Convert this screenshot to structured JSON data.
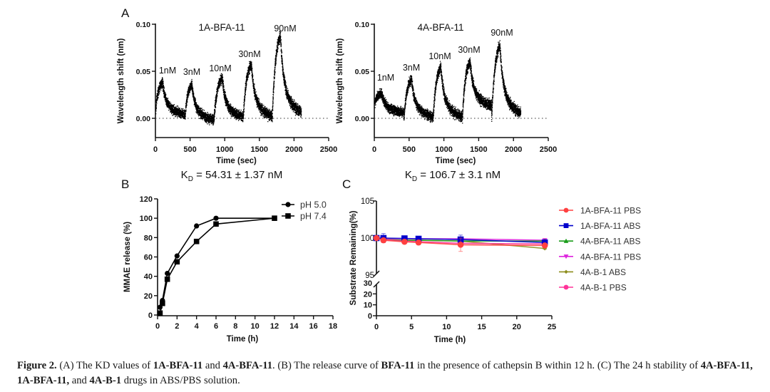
{
  "figure": {
    "panel_labels": [
      "A",
      "B",
      "C"
    ],
    "caption": {
      "parts": [
        {
          "t": "Figure 2.",
          "b": true
        },
        {
          "t": " (A) The KD values of ",
          "b": false
        },
        {
          "t": "1A-BFA-11",
          "b": true
        },
        {
          "t": " and ",
          "b": false
        },
        {
          "t": "4A-BFA-11",
          "b": true
        },
        {
          "t": ". (B) The release curve of ",
          "b": false
        },
        {
          "t": "BFA-11",
          "b": true
        },
        {
          "t": " in the presence of cathepsin B within 12 h. (C) The 24 h stability of ",
          "b": false
        },
        {
          "t": "4A-BFA-11, 1A-BFA-11,",
          "b": true
        },
        {
          "t": " and ",
          "b": false
        },
        {
          "t": "4A-B-1",
          "b": true
        },
        {
          "t": " drugs in ABS/PBS solution.",
          "b": false
        }
      ]
    }
  },
  "chart_data": [
    {
      "id": "A1",
      "type": "scatter",
      "title": "1A-BFA-11",
      "xlabel": "Time (sec)",
      "ylabel": "Wavelength shift (nm)",
      "xlim": [
        0,
        2500
      ],
      "ylim": [
        -0.02,
        0.1
      ],
      "xticks": [
        0,
        500,
        1000,
        1500,
        2000,
        2500
      ],
      "yticks": [
        "0.00",
        "0.05",
        "0.10"
      ],
      "ytick_values": [
        0,
        0.05,
        0.1
      ],
      "baseline": 0,
      "kd_label": "K_D = 54.31 ± 1.37 nM",
      "kd_main": "K",
      "kd_sub": "D",
      "kd_rest": " = 54.31 ± 1.37 nM",
      "injections": [
        {
          "label": "1nM",
          "start": 0,
          "peak_time": 100,
          "peak": 0.038,
          "start_value": 0.012,
          "end": 420,
          "end_value": 0.003
        },
        {
          "label": "3nM",
          "start": 420,
          "peak_time": 520,
          "peak": 0.036,
          "start_value": 0.0,
          "end": 840,
          "end_value": -0.003
        },
        {
          "label": "10nM",
          "start": 840,
          "peak_time": 960,
          "peak": 0.043,
          "start_value": 0.0,
          "end": 1260,
          "end_value": 0.0
        },
        {
          "label": "30nM",
          "start": 1260,
          "peak_time": 1380,
          "peak": 0.058,
          "start_value": 0.0,
          "end": 1680,
          "end_value": 0.0
        },
        {
          "label": "90nM",
          "start": 1680,
          "peak_time": 1800,
          "peak": 0.088,
          "start_value": 0.0,
          "end": 2100,
          "end_value": 0.003
        }
      ]
    },
    {
      "id": "A2",
      "type": "scatter",
      "title": "4A-BFA-11",
      "xlabel": "Time (sec)",
      "ylabel": "Wavelength shift (nm)",
      "xlim": [
        0,
        2500
      ],
      "ylim": [
        -0.02,
        0.1
      ],
      "xticks": [
        0,
        500,
        1000,
        1500,
        2000,
        2500
      ],
      "yticks": [
        "0.00",
        "0.05",
        "0.10"
      ],
      "ytick_values": [
        0,
        0.05,
        0.1
      ],
      "baseline": 0,
      "kd_label": "K_D = 106.7 ± 3.1 nM",
      "kd_main": "K",
      "kd_sub": "D",
      "kd_rest": " = 106.7 ± 3.1 nM",
      "injections": [
        {
          "label": "1nM",
          "start": 0,
          "peak_time": 100,
          "peak": 0.027,
          "start_value": 0.016,
          "end": 420,
          "end_value": 0.006
        },
        {
          "label": "3nM",
          "start": 420,
          "peak_time": 530,
          "peak": 0.042,
          "start_value": 0.0,
          "end": 840,
          "end_value": 0.0
        },
        {
          "label": "10nM",
          "start": 840,
          "peak_time": 950,
          "peak": 0.055,
          "start_value": 0.0,
          "end": 1260,
          "end_value": 0.0
        },
        {
          "label": "30nM",
          "start": 1260,
          "peak_time": 1370,
          "peak": 0.061,
          "start_value": 0.0,
          "end": 1680,
          "end_value": 0.012
        },
        {
          "label": "90nM",
          "start": 1680,
          "peak_time": 1800,
          "peak": 0.078,
          "start_value": 0.0,
          "end": 2100,
          "end_value": 0.003
        }
      ]
    },
    {
      "id": "B",
      "type": "line",
      "title": "",
      "xlabel": "Time (h)",
      "ylabel": "MMAE release (%)",
      "xlim": [
        0,
        18
      ],
      "ylim": [
        0,
        120
      ],
      "xticks": [
        0,
        2,
        4,
        6,
        8,
        10,
        12,
        14,
        16,
        18
      ],
      "yticks": [
        0,
        20,
        40,
        60,
        80,
        100,
        120
      ],
      "legend_position": "top-right",
      "series": [
        {
          "name": "pH 5.0",
          "marker": "circle",
          "color": "#000000",
          "x": [
            0.25,
            0.5,
            1,
            2,
            4,
            6,
            12
          ],
          "y": [
            8,
            15,
            43,
            61,
            92,
            100,
            100
          ]
        },
        {
          "name": "pH 7.4",
          "marker": "square",
          "color": "#000000",
          "x": [
            0.25,
            0.5,
            1,
            2,
            4,
            6,
            12
          ],
          "y": [
            2,
            12,
            37,
            55,
            76,
            94,
            100
          ]
        }
      ]
    },
    {
      "id": "C",
      "type": "line",
      "title": "",
      "xlabel": "Time (h)",
      "ylabel": "Substrate Remaining(%)",
      "xlim": [
        0,
        25
      ],
      "ylim_upper": [
        95,
        105
      ],
      "ylim_lower": [
        0,
        30
      ],
      "axis_break": true,
      "xticks": [
        0,
        5,
        10,
        15,
        20,
        25
      ],
      "yticks_upper": [
        95,
        100,
        105
      ],
      "yticks_lower": [
        0,
        10,
        20,
        30
      ],
      "legend_position": "right",
      "series": [
        {
          "name": "1A-BFA-11 PBS",
          "marker": "circle",
          "color": "#ff4040",
          "x": [
            0,
            1,
            4,
            6,
            12,
            24
          ],
          "y": [
            100,
            99.7,
            99.5,
            99.4,
            99.1,
            99.0
          ],
          "err": [
            0,
            0.3,
            0.2,
            0.3,
            0.9,
            0.2
          ]
        },
        {
          "name": "1A-BFA-11 ABS",
          "marker": "square",
          "color": "#0000cc",
          "x": [
            0,
            1,
            4,
            6,
            12,
            24
          ],
          "y": [
            100,
            100,
            99.95,
            99.9,
            99.8,
            99.4
          ],
          "err": [
            0,
            0.6,
            0.1,
            0.1,
            0.6,
            0.2
          ]
        },
        {
          "name": "4A-BFA-11 ABS",
          "marker": "triangle",
          "color": "#1a9c1a",
          "x": [
            0,
            1,
            4,
            6,
            12,
            24
          ],
          "y": [
            100,
            99.8,
            99.7,
            99.7,
            99.6,
            99.6
          ],
          "err": [
            0,
            0.1,
            0.1,
            0.1,
            0.1,
            0.1
          ]
        },
        {
          "name": "4A-BFA-11 PBS",
          "marker": "triangle-down",
          "color": "#dd22dd",
          "x": [
            0,
            1,
            4,
            6,
            12,
            24
          ],
          "y": [
            100,
            99.9,
            99.9,
            99.9,
            99.9,
            99.7
          ],
          "err": [
            0,
            0.1,
            0.1,
            0.1,
            0.2,
            0.2
          ]
        },
        {
          "name": "4A-B-1 ABS",
          "marker": "diamond",
          "color": "#8c8c1a",
          "x": [
            0,
            1,
            4,
            6,
            12,
            24
          ],
          "y": [
            100,
            99.8,
            99.7,
            99.7,
            99.6,
            98.6
          ],
          "err": [
            0,
            0.1,
            0.1,
            0.1,
            0.1,
            0.1
          ]
        },
        {
          "name": "4A-B-1 PBS",
          "marker": "circle",
          "color": "#ff3399",
          "x": [
            0,
            1,
            4,
            6,
            12,
            24
          ],
          "y": [
            100,
            99.8,
            99.6,
            99.5,
            99.3,
            99.2
          ],
          "err": [
            0,
            0.1,
            0.1,
            0.1,
            0.1,
            0.1
          ]
        }
      ]
    }
  ]
}
